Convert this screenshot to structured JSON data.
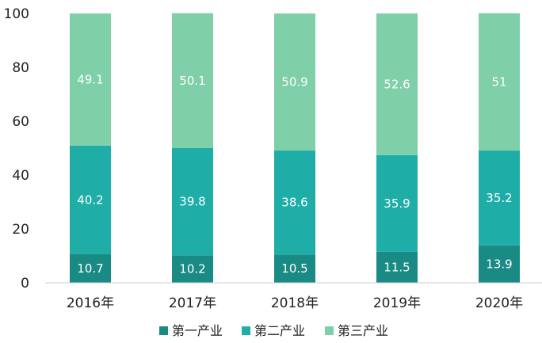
{
  "chart_data": {
    "type": "bar",
    "stacked": true,
    "categories": [
      "2016年",
      "2017年",
      "2018年",
      "2019年",
      "2020年"
    ],
    "series": [
      {
        "name": "第一产业",
        "color": "#1a8a85",
        "values": [
          10.7,
          10.2,
          10.5,
          11.5,
          13.9
        ],
        "labels": [
          "10.7",
          "10.2",
          "10.5",
          "11.5",
          "13.9"
        ]
      },
      {
        "name": "第二产业",
        "color": "#1fada8",
        "values": [
          40.2,
          39.8,
          38.6,
          35.9,
          35.2
        ],
        "labels": [
          "40.2",
          "39.8",
          "38.6",
          "35.9",
          "35.2"
        ]
      },
      {
        "name": "第三产业",
        "color": "#7fcfa8",
        "values": [
          49.1,
          50.1,
          50.9,
          52.6,
          51
        ],
        "labels": [
          "49.1",
          "50.1",
          "50.9",
          "52.6",
          "51"
        ]
      }
    ],
    "yticks": [
      "0",
      "20",
      "40",
      "60",
      "80",
      "100"
    ],
    "ylim": [
      0,
      100
    ],
    "grid": false,
    "legend_position": "bottom"
  }
}
